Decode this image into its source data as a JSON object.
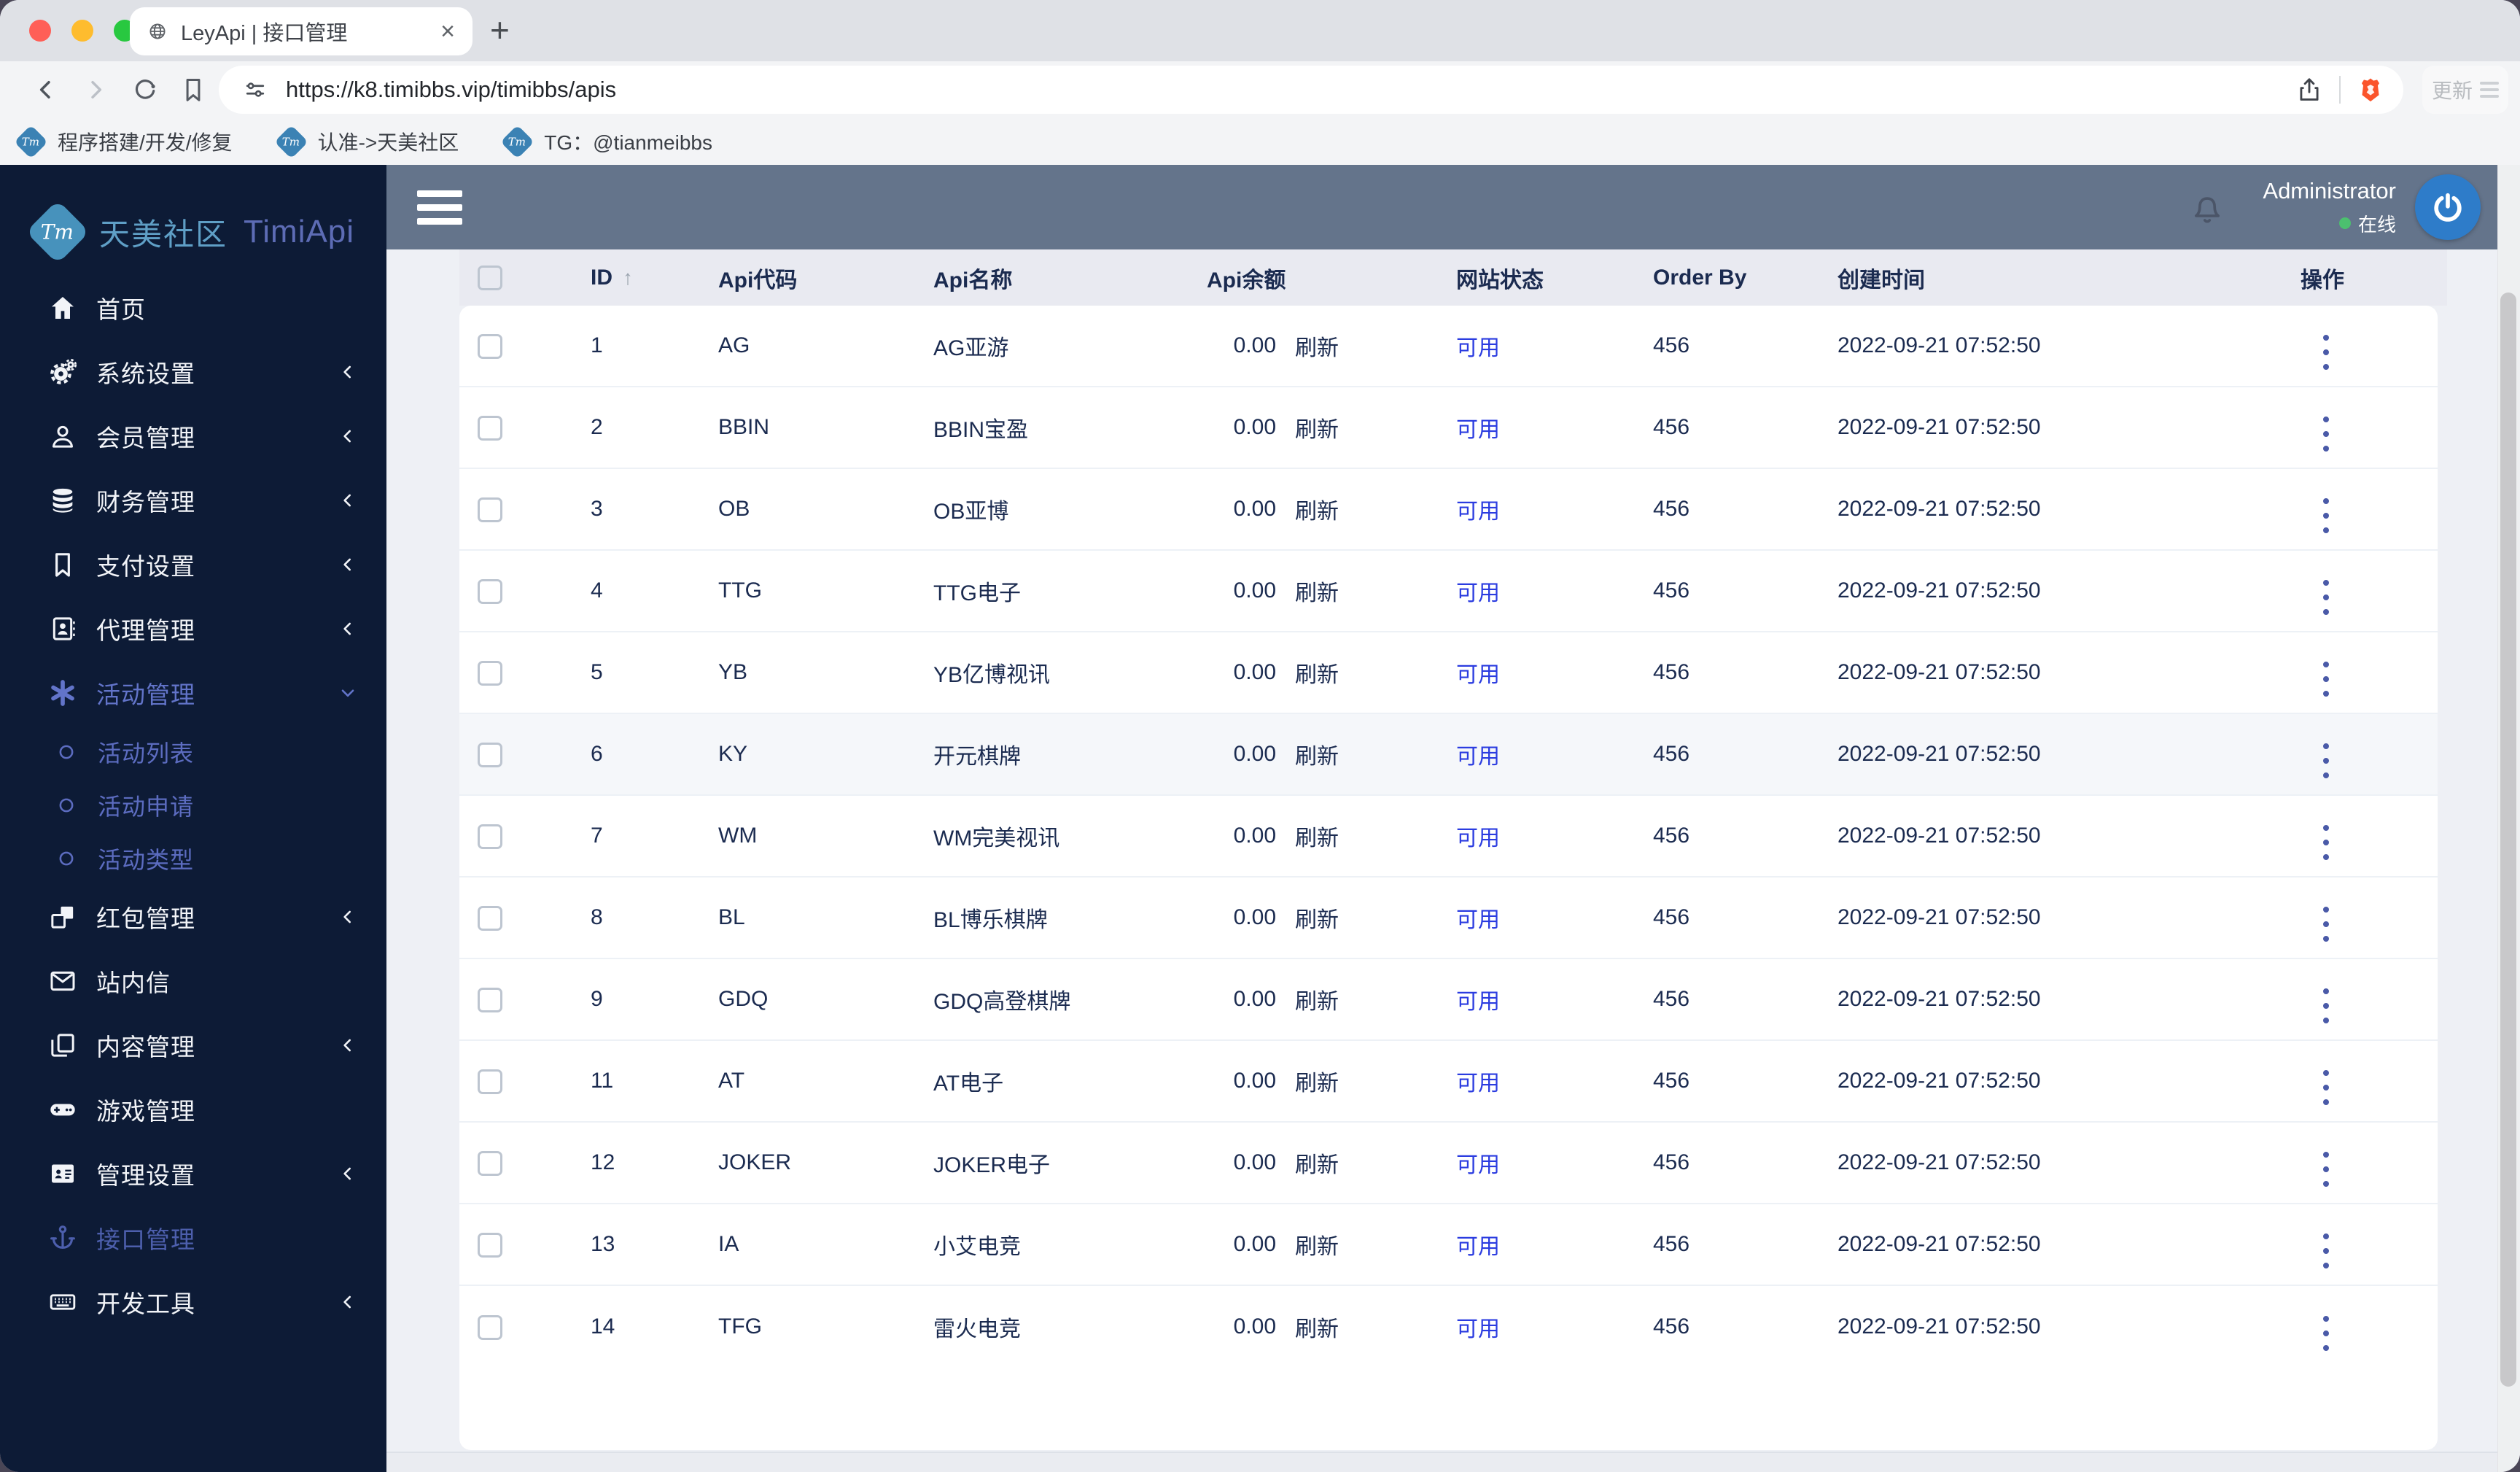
{
  "browser": {
    "tab_title": "LeyApi | 接口管理",
    "url": "https://k8.timibbs.vip/timibbs/apis",
    "new_tab": "+",
    "update_label": "更新",
    "bookmarks": [
      {
        "label": "程序搭建/开发/修复",
        "badge": "Tm"
      },
      {
        "label": "认准->天美社区",
        "badge": "Tm"
      },
      {
        "label": "TG：@tianmeibbs",
        "badge": "Tm"
      }
    ]
  },
  "sidebar": {
    "logo": {
      "badge": "Tm",
      "cn": "天美社区",
      "en": "TimiApi"
    },
    "items": [
      {
        "label": "首页",
        "icon": "home"
      },
      {
        "label": "系统设置",
        "icon": "gears",
        "chevron": "left"
      },
      {
        "label": "会员管理",
        "icon": "user",
        "chevron": "left"
      },
      {
        "label": "财务管理",
        "icon": "database",
        "chevron": "left"
      },
      {
        "label": "支付设置",
        "icon": "bookmark",
        "chevron": "left"
      },
      {
        "label": "代理管理",
        "icon": "idbadge",
        "chevron": "left"
      },
      {
        "label": "活动管理",
        "icon": "asterisk",
        "chevron": "down",
        "active": true
      },
      {
        "label": "活动列表",
        "icon": "circle",
        "sub": true
      },
      {
        "label": "活动申请",
        "icon": "circle",
        "sub": true
      },
      {
        "label": "活动类型",
        "icon": "circle",
        "sub": true
      },
      {
        "label": "红包管理",
        "icon": "boxes",
        "chevron": "left"
      },
      {
        "label": "站内信",
        "icon": "mail"
      },
      {
        "label": "内容管理",
        "icon": "copy",
        "chevron": "left"
      },
      {
        "label": "游戏管理",
        "icon": "gamepad"
      },
      {
        "label": "管理设置",
        "icon": "card",
        "chevron": "left"
      },
      {
        "label": "接口管理",
        "icon": "anchor",
        "current": true
      },
      {
        "label": "开发工具",
        "icon": "keyboard",
        "chevron": "left"
      }
    ]
  },
  "header": {
    "user": "Administrator",
    "status": "在线"
  },
  "table": {
    "columns": [
      "ID",
      "Api代码",
      "Api名称",
      "Api余额",
      "网站状态",
      "Order By",
      "创建时间",
      "操作"
    ],
    "sort_icon": "↑",
    "refresh_label": "刷新",
    "highlighted_row_id": "6",
    "rows": [
      {
        "id": "1",
        "code": "AG",
        "name": "AG亚游",
        "balance": "0.00",
        "status": "可用",
        "order": "456",
        "created": "2022-09-21 07:52:50"
      },
      {
        "id": "2",
        "code": "BBIN",
        "name": "BBIN宝盈",
        "balance": "0.00",
        "status": "可用",
        "order": "456",
        "created": "2022-09-21 07:52:50"
      },
      {
        "id": "3",
        "code": "OB",
        "name": "OB亚博",
        "balance": "0.00",
        "status": "可用",
        "order": "456",
        "created": "2022-09-21 07:52:50"
      },
      {
        "id": "4",
        "code": "TTG",
        "name": "TTG电子",
        "balance": "0.00",
        "status": "可用",
        "order": "456",
        "created": "2022-09-21 07:52:50"
      },
      {
        "id": "5",
        "code": "YB",
        "name": "YB亿博视讯",
        "balance": "0.00",
        "status": "可用",
        "order": "456",
        "created": "2022-09-21 07:52:50"
      },
      {
        "id": "6",
        "code": "KY",
        "name": "开元棋牌",
        "balance": "0.00",
        "status": "可用",
        "order": "456",
        "created": "2022-09-21 07:52:50"
      },
      {
        "id": "7",
        "code": "WM",
        "name": "WM完美视讯",
        "balance": "0.00",
        "status": "可用",
        "order": "456",
        "created": "2022-09-21 07:52:50"
      },
      {
        "id": "8",
        "code": "BL",
        "name": "BL博乐棋牌",
        "balance": "0.00",
        "status": "可用",
        "order": "456",
        "created": "2022-09-21 07:52:50"
      },
      {
        "id": "9",
        "code": "GDQ",
        "name": "GDQ高登棋牌",
        "balance": "0.00",
        "status": "可用",
        "order": "456",
        "created": "2022-09-21 07:52:50"
      },
      {
        "id": "11",
        "code": "AT",
        "name": "AT电子",
        "balance": "0.00",
        "status": "可用",
        "order": "456",
        "created": "2022-09-21 07:52:50"
      },
      {
        "id": "12",
        "code": "JOKER",
        "name": "JOKER电子",
        "balance": "0.00",
        "status": "可用",
        "order": "456",
        "created": "2022-09-21 07:52:50"
      },
      {
        "id": "13",
        "code": "IA",
        "name": "小艾电竞",
        "balance": "0.00",
        "status": "可用",
        "order": "456",
        "created": "2022-09-21 07:52:50"
      },
      {
        "id": "14",
        "code": "TFG",
        "name": "雷火电竞",
        "balance": "0.00",
        "status": "可用",
        "order": "456",
        "created": "2022-09-21 07:52:50"
      }
    ]
  },
  "colors": {
    "sidebar_bg": "#0d1b36",
    "header_slate": "#64748b",
    "page_bg": "#eef0f5",
    "thead_bg": "#e9eaf1",
    "text_navy": "#1b2b50",
    "status_blue": "#2b3ce0",
    "active_nav": "#6274c9",
    "current_nav": "#4d5fad",
    "online_green": "#4cc06f",
    "avatar_blue": "#2e7cc9",
    "brave_orange": "#fb542b",
    "traffic_red": "#ff5f57",
    "traffic_yellow": "#febc2e",
    "traffic_green": "#28c840"
  }
}
